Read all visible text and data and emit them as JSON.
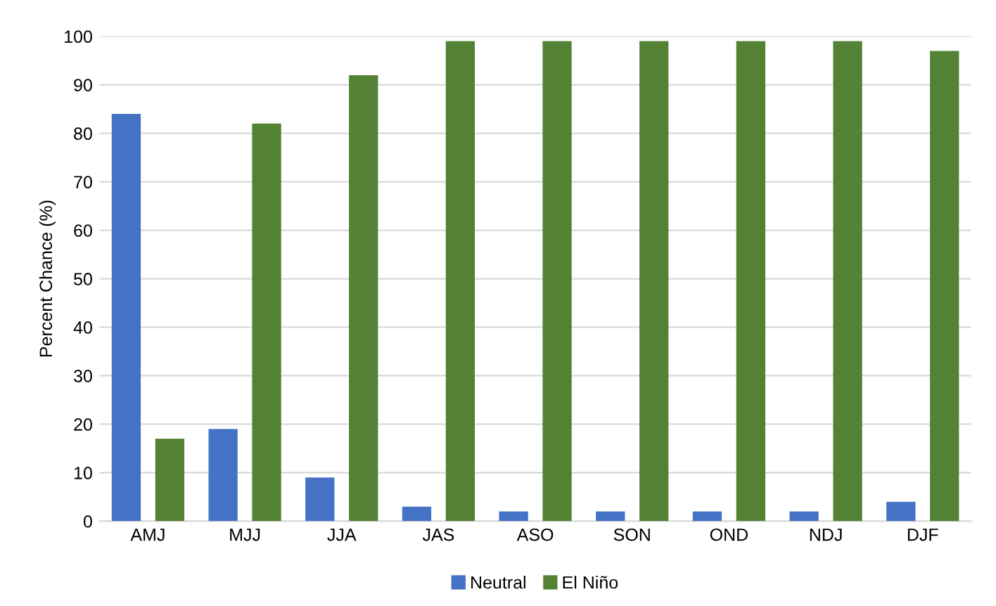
{
  "chart_data": {
    "type": "bar",
    "ylabel": "Percent Chance (%)",
    "categories": [
      "AMJ",
      "MJJ",
      "JJA",
      "JAS",
      "ASO",
      "SON",
      "OND",
      "NDJ",
      "DJF"
    ],
    "series": [
      {
        "name": "Neutral",
        "color": "#4472c4",
        "values": [
          84,
          19,
          9,
          3,
          2,
          2,
          2,
          2,
          4
        ]
      },
      {
        "name": "El Niño",
        "color": "#548235",
        "values": [
          17,
          82,
          92,
          99,
          99,
          99,
          99,
          99,
          97
        ]
      }
    ],
    "ylim": [
      0,
      100
    ],
    "yticks": [
      0,
      10,
      20,
      30,
      40,
      50,
      60,
      70,
      80,
      90,
      100
    ],
    "grid": "y",
    "legend": "bottom"
  }
}
